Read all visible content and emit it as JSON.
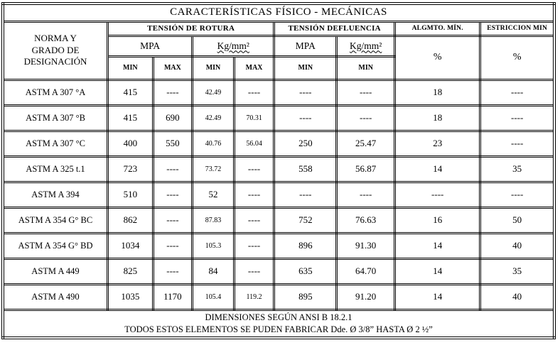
{
  "title": "CARACTERÍSTICAS FÍSICO - MECÁNICAS",
  "header": {
    "norma": "NORMA Y\nGRADO DE\nDESIGNACIÓN",
    "rotura": "TENSIÓN DE ROTURA",
    "fluencia": "TENSIÓN DEFLUENCIA",
    "algmto": "ALGMTO. MÍN.",
    "estriccion": "ESTRICCION MIN",
    "mpa": "MPA",
    "kg": "Kg/mm²",
    "min": "MIN",
    "max": "MAX",
    "pct": "%"
  },
  "rows": [
    {
      "name": "ASTM A 307 °A",
      "rot_mpa_min": "415",
      "rot_mpa_max": "----",
      "rot_kg_min": "42.49",
      "rot_kg_max": "----",
      "flu_mpa_min": "----",
      "flu_kg_min": "----",
      "algmto": "18",
      "estriccion": "----"
    },
    {
      "name": "ASTM A 307 °B",
      "rot_mpa_min": "415",
      "rot_mpa_max": "690",
      "rot_kg_min": "42.49",
      "rot_kg_max": "70.31",
      "flu_mpa_min": "----",
      "flu_kg_min": "----",
      "algmto": "18",
      "estriccion": "----"
    },
    {
      "name": "ASTM A 307 °C",
      "rot_mpa_min": "400",
      "rot_mpa_max": "550",
      "rot_kg_min": "40.76",
      "rot_kg_max": "56.04",
      "flu_mpa_min": "250",
      "flu_kg_min": "25.47",
      "algmto": "23",
      "estriccion": "----"
    },
    {
      "name": "ASTM A 325 t.1",
      "rot_mpa_min": "723",
      "rot_mpa_max": "----",
      "rot_kg_min": "73.72",
      "rot_kg_max": "----",
      "flu_mpa_min": "558",
      "flu_kg_min": "56.87",
      "algmto": "14",
      "estriccion": "35"
    },
    {
      "name": "ASTM A 394",
      "rot_mpa_min": "510",
      "rot_mpa_max": "----",
      "rot_kg_min": "52",
      "rot_kg_max": "----",
      "flu_mpa_min": "----",
      "flu_kg_min": "----",
      "algmto": "----",
      "estriccion": "----"
    },
    {
      "name": "ASTM A 354 G° BC",
      "rot_mpa_min": "862",
      "rot_mpa_max": "----",
      "rot_kg_min": "87.83",
      "rot_kg_max": "----",
      "flu_mpa_min": "752",
      "flu_kg_min": "76.63",
      "algmto": "16",
      "estriccion": "50"
    },
    {
      "name": "ASTM A 354 G° BD",
      "rot_mpa_min": "1034",
      "rot_mpa_max": "----",
      "rot_kg_min": "105.3",
      "rot_kg_max": "----",
      "flu_mpa_min": "896",
      "flu_kg_min": "91.30",
      "algmto": "14",
      "estriccion": "40"
    },
    {
      "name": "ASTM A 449",
      "rot_mpa_min": "825",
      "rot_mpa_max": "----",
      "rot_kg_min": "84",
      "rot_kg_max": "----",
      "flu_mpa_min": "635",
      "flu_kg_min": "64.70",
      "algmto": "14",
      "estriccion": "35"
    },
    {
      "name": "ASTM A 490",
      "rot_mpa_min": "1035",
      "rot_mpa_max": "1170",
      "rot_kg_min": "105.4",
      "rot_kg_max": "119.2",
      "flu_mpa_min": "895",
      "flu_kg_min": "91.20",
      "algmto": "14",
      "estriccion": "40"
    }
  ],
  "footer": {
    "line1": "DIMENSIONES SEGÚN ANSI B 18.2.1",
    "line2": "TODOS ESTOS ELEMENTOS SE PUDEN FABRICAR Dde. Ø 3/8”  HASTA Ø 2 ½”"
  }
}
